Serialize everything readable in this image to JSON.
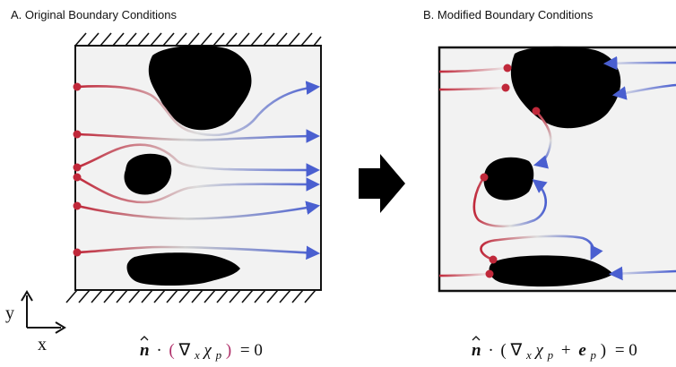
{
  "panel_a": {
    "title": "A. Original Boundary Conditions",
    "equation": {
      "lhs_vector": "n",
      "dot": "·",
      "open_paren": "(",
      "nabla": "∇",
      "nabla_sub": "x",
      "chi": "χ",
      "chi_sub": "p",
      "close_paren": ")",
      "rhs": "= 0"
    }
  },
  "panel_b": {
    "title": "B. Modified Boundary Conditions",
    "equation": {
      "lhs_vector": "n",
      "dot": "·",
      "open_paren": "(",
      "nabla": "∇",
      "nabla_sub": "x",
      "chi": "χ",
      "chi_sub": "p",
      "plus": "+",
      "e_vector": "e",
      "e_sub": "p",
      "close_paren": ")",
      "rhs": "= 0"
    }
  },
  "axes": {
    "y_label": "y",
    "x_label": "x"
  },
  "colors": {
    "start": "#c0283a",
    "end": "#4a5fd0",
    "solid": "#000000"
  }
}
